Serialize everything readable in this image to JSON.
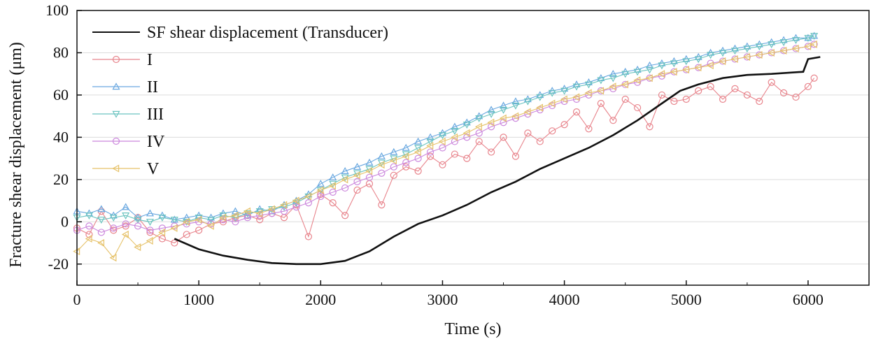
{
  "chart_data": {
    "type": "line",
    "xlabel": "Time (s)",
    "ylabel": "Fracture shear displacement (μm)",
    "xlim": [
      0,
      6500
    ],
    "ylim": [
      -30,
      100
    ],
    "xticks": [
      0,
      1000,
      2000,
      3000,
      4000,
      5000,
      6000
    ],
    "yticks": [
      -20,
      0,
      20,
      40,
      60,
      80,
      100
    ],
    "grid": "horizontal",
    "legend_position": "top-left",
    "series": [
      {
        "name": "SF shear displacement (Transducer)",
        "color": "#111111",
        "marker": "none",
        "x": [
          800,
          1000,
          1200,
          1400,
          1600,
          1800,
          2000,
          2200,
          2400,
          2600,
          2800,
          3000,
          3200,
          3400,
          3600,
          3800,
          4000,
          4200,
          4400,
          4600,
          4800,
          4950,
          5100,
          5300,
          5500,
          5700,
          5960,
          6000,
          6100
        ],
        "y": [
          -8,
          -13,
          -16,
          -18,
          -19.5,
          -20,
          -20,
          -18.5,
          -14,
          -7,
          -1,
          3,
          8,
          14,
          19,
          25,
          30,
          35,
          41,
          48,
          56,
          62,
          65,
          68,
          69.5,
          70,
          71,
          77,
          78
        ]
      },
      {
        "name": "I",
        "color": "#e8848c",
        "marker": "circle",
        "x": [
          0,
          100,
          200,
          300,
          400,
          500,
          600,
          700,
          800,
          900,
          1000,
          1100,
          1200,
          1300,
          1400,
          1500,
          1600,
          1700,
          1800,
          1900,
          2000,
          2100,
          2200,
          2300,
          2400,
          2500,
          2600,
          2700,
          2800,
          2900,
          3000,
          3100,
          3200,
          3300,
          3400,
          3500,
          3600,
          3700,
          3800,
          3900,
          4000,
          4100,
          4200,
          4300,
          4400,
          4500,
          4600,
          4700,
          4800,
          4900,
          5000,
          5100,
          5200,
          5300,
          5400,
          5500,
          5600,
          5700,
          5800,
          5900,
          6000,
          6050
        ],
        "y": [
          -3,
          -6,
          5,
          -4,
          -2,
          2,
          -5,
          -8,
          -10,
          -6,
          -4,
          -1,
          0,
          2,
          3,
          1,
          4,
          2,
          8,
          -7,
          13,
          9,
          3,
          15,
          18,
          8,
          22,
          26,
          24,
          31,
          27,
          32,
          30,
          38,
          33,
          40,
          31,
          42,
          38,
          43,
          46,
          52,
          44,
          56,
          48,
          58,
          54,
          45,
          60,
          57,
          58,
          62,
          64,
          58,
          63,
          60,
          57,
          66,
          61,
          59,
          64,
          68
        ]
      },
      {
        "name": "II",
        "color": "#6aa8e0",
        "marker": "triangle-up",
        "x": [
          0,
          100,
          200,
          300,
          400,
          500,
          600,
          700,
          800,
          900,
          1000,
          1100,
          1200,
          1300,
          1400,
          1500,
          1600,
          1700,
          1800,
          1900,
          2000,
          2100,
          2200,
          2300,
          2400,
          2500,
          2600,
          2700,
          2800,
          2900,
          3000,
          3100,
          3200,
          3300,
          3400,
          3500,
          3600,
          3700,
          3800,
          3900,
          4000,
          4100,
          4200,
          4300,
          4400,
          4500,
          4600,
          4700,
          4800,
          4900,
          5000,
          5100,
          5200,
          5300,
          5400,
          5500,
          5600,
          5700,
          5800,
          5900,
          6000,
          6050
        ],
        "y": [
          5,
          4,
          6,
          3,
          7,
          2,
          4,
          3,
          1,
          2,
          3,
          2,
          4,
          5,
          3,
          6,
          5,
          8,
          10,
          13,
          18,
          21,
          24,
          26,
          28,
          31,
          33,
          35,
          38,
          40,
          42,
          45,
          47,
          50,
          53,
          55,
          57,
          58,
          60,
          62,
          63,
          65,
          66,
          68,
          70,
          71,
          72,
          74,
          75,
          76,
          77,
          78,
          80,
          81,
          82,
          83,
          84,
          85,
          86,
          87,
          87,
          88
        ]
      },
      {
        "name": "III",
        "color": "#6cc4c0",
        "marker": "triangle-down",
        "x": [
          0,
          100,
          200,
          300,
          400,
          500,
          600,
          700,
          800,
          900,
          1000,
          1100,
          1200,
          1300,
          1400,
          1500,
          1600,
          1700,
          1800,
          1900,
          2000,
          2100,
          2200,
          2300,
          2400,
          2500,
          2600,
          2700,
          2800,
          2900,
          3000,
          3100,
          3200,
          3300,
          3400,
          3500,
          3600,
          3700,
          3800,
          3900,
          4000,
          4100,
          4200,
          4300,
          4400,
          4500,
          4600,
          4700,
          4800,
          4900,
          5000,
          5100,
          5200,
          5300,
          5400,
          5500,
          5600,
          5700,
          5800,
          5900,
          6000,
          6050
        ],
        "y": [
          2,
          3,
          1,
          2,
          3,
          1,
          0,
          2,
          1,
          0,
          2,
          1,
          3,
          2,
          4,
          5,
          6,
          7,
          9,
          12,
          15,
          18,
          21,
          23,
          25,
          28,
          30,
          32,
          35,
          38,
          41,
          43,
          46,
          49,
          51,
          53,
          55,
          57,
          59,
          61,
          62,
          64,
          65,
          67,
          68,
          70,
          71,
          72,
          74,
          75,
          76,
          77,
          79,
          80,
          81,
          82,
          83,
          84,
          85,
          86,
          87,
          88
        ]
      },
      {
        "name": "IV",
        "color": "#cc88dd",
        "marker": "circle",
        "x": [
          0,
          100,
          200,
          300,
          400,
          500,
          600,
          700,
          800,
          900,
          1000,
          1100,
          1200,
          1300,
          1400,
          1500,
          1600,
          1700,
          1800,
          1900,
          2000,
          2100,
          2200,
          2300,
          2400,
          2500,
          2600,
          2700,
          2800,
          2900,
          3000,
          3100,
          3200,
          3300,
          3400,
          3500,
          3600,
          3700,
          3800,
          3900,
          4000,
          4100,
          4200,
          4300,
          4400,
          4500,
          4600,
          4700,
          4800,
          4900,
          5000,
          5100,
          5200,
          5300,
          5400,
          5500,
          5600,
          5700,
          5800,
          5900,
          6000,
          6050
        ],
        "y": [
          -4,
          -2,
          -5,
          -3,
          -1,
          -2,
          -4,
          -3,
          -2,
          -1,
          0,
          -1,
          1,
          0,
          2,
          3,
          4,
          5,
          7,
          9,
          12,
          14,
          16,
          19,
          21,
          23,
          26,
          28,
          30,
          33,
          35,
          38,
          40,
          42,
          45,
          47,
          49,
          51,
          53,
          55,
          57,
          58,
          60,
          62,
          63,
          65,
          66,
          68,
          69,
          71,
          72,
          73,
          75,
          76,
          77,
          78,
          79,
          80,
          81,
          82,
          83,
          84
        ]
      },
      {
        "name": "V",
        "color": "#e6c26a",
        "marker": "triangle-left",
        "x": [
          0,
          100,
          200,
          300,
          400,
          500,
          600,
          700,
          800,
          900,
          1000,
          1100,
          1200,
          1300,
          1400,
          1500,
          1600,
          1700,
          1800,
          1900,
          2000,
          2100,
          2200,
          2300,
          2400,
          2500,
          2600,
          2700,
          2800,
          2900,
          3000,
          3100,
          3200,
          3300,
          3400,
          3500,
          3600,
          3700,
          3800,
          3900,
          4000,
          4100,
          4200,
          4300,
          4400,
          4500,
          4600,
          4700,
          4800,
          4900,
          5000,
          5100,
          5200,
          5300,
          5400,
          5500,
          5600,
          5700,
          5800,
          5900,
          6000,
          6050
        ],
        "y": [
          -14,
          -8,
          -10,
          -17,
          -6,
          -12,
          -9,
          -5,
          -3,
          0,
          1,
          -2,
          2,
          3,
          5,
          4,
          6,
          8,
          10,
          12,
          15,
          17,
          20,
          22,
          24,
          27,
          29,
          31,
          33,
          36,
          38,
          40,
          42,
          45,
          47,
          49,
          50,
          52,
          54,
          56,
          58,
          59,
          61,
          62,
          64,
          65,
          67,
          68,
          70,
          71,
          72,
          73,
          74,
          76,
          77,
          78,
          79,
          80,
          81,
          82,
          83,
          84
        ]
      }
    ]
  }
}
